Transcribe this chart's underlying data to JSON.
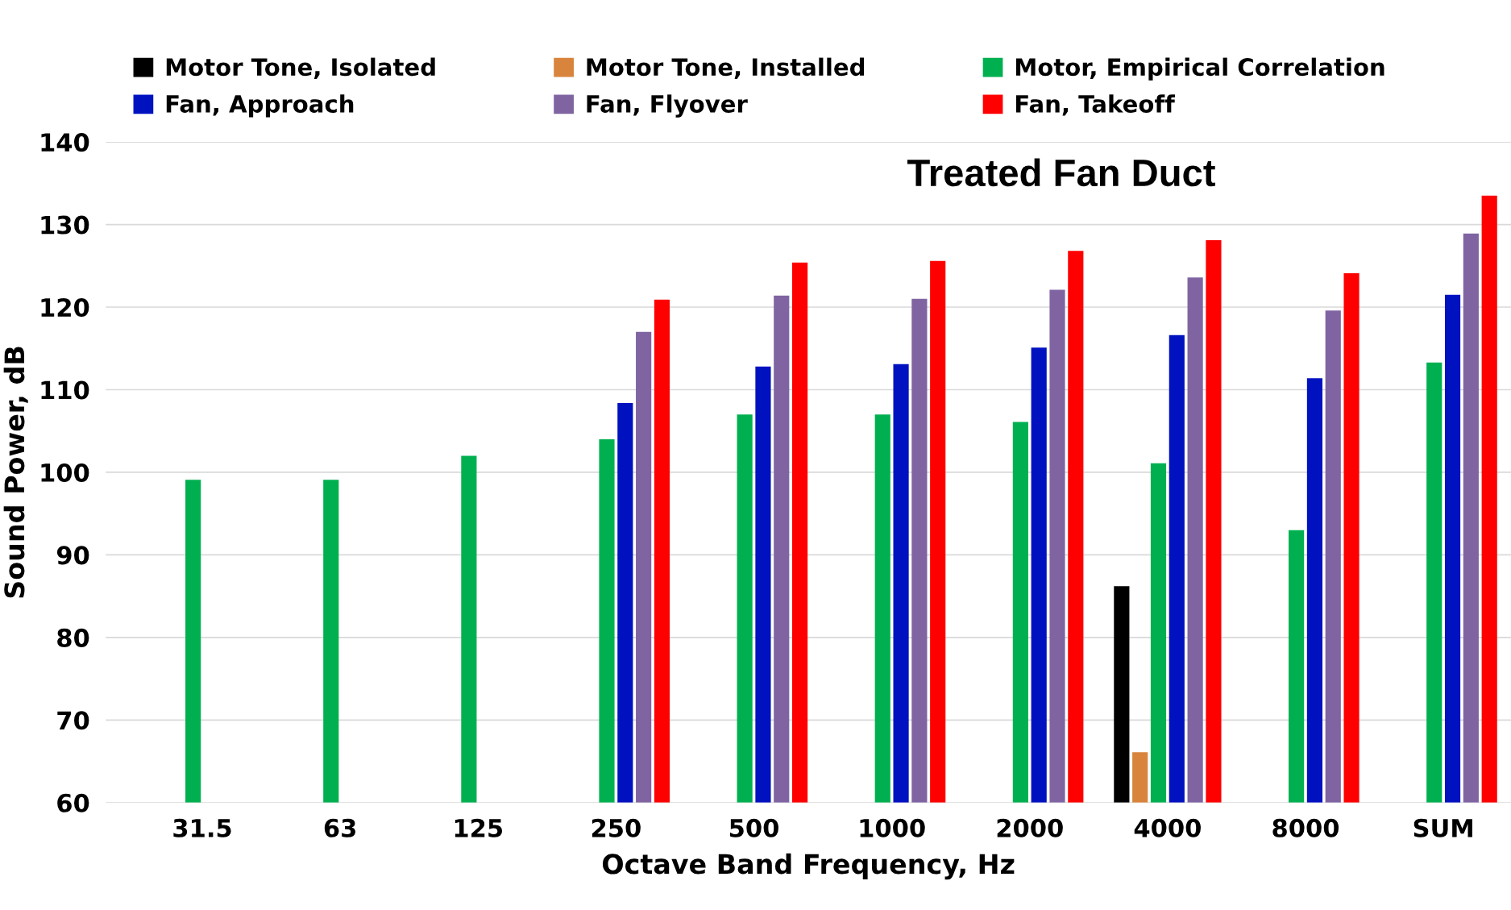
{
  "chart_data": {
    "type": "bar",
    "title": "Treated Fan Duct",
    "xlabel": "Octave Band Frequency, Hz",
    "ylabel": "Sound Power, dB",
    "categories": [
      "31.5",
      "63",
      "125",
      "250",
      "500",
      "1000",
      "2000",
      "4000",
      "8000",
      "SUM"
    ],
    "series": [
      {
        "name": "Motor Tone, Isolated",
        "color": "#000000",
        "values": [
          null,
          null,
          null,
          null,
          null,
          null,
          null,
          86.2,
          null,
          null
        ]
      },
      {
        "name": "Motor Tone, Installed",
        "color": "#d9843d",
        "values": [
          null,
          null,
          null,
          null,
          null,
          null,
          null,
          66.1,
          null,
          null
        ]
      },
      {
        "name": "Motor, Empirical Correlation",
        "color": "#00b050",
        "values": [
          99.1,
          99.1,
          102.0,
          104.0,
          107.0,
          107.0,
          106.1,
          101.1,
          93.0,
          113.3
        ]
      },
      {
        "name": "Fan, Approach",
        "color": "#0012c0",
        "values": [
          null,
          null,
          null,
          108.4,
          112.8,
          113.1,
          115.1,
          116.6,
          111.4,
          121.5
        ]
      },
      {
        "name": "Fan, Flyover",
        "color": "#8064a2",
        "values": [
          null,
          null,
          null,
          117.0,
          121.4,
          121.0,
          122.1,
          123.6,
          119.6,
          128.9
        ]
      },
      {
        "name": "Fan, Takeoff",
        "color": "#ff0000",
        "values": [
          null,
          null,
          null,
          120.9,
          125.4,
          125.6,
          126.8,
          128.1,
          124.1,
          133.5
        ]
      }
    ],
    "ylim": [
      60,
      140
    ],
    "yticks": [
      60,
      70,
      80,
      90,
      100,
      110,
      120,
      130,
      140
    ],
    "grid": "y",
    "legend": "top"
  }
}
